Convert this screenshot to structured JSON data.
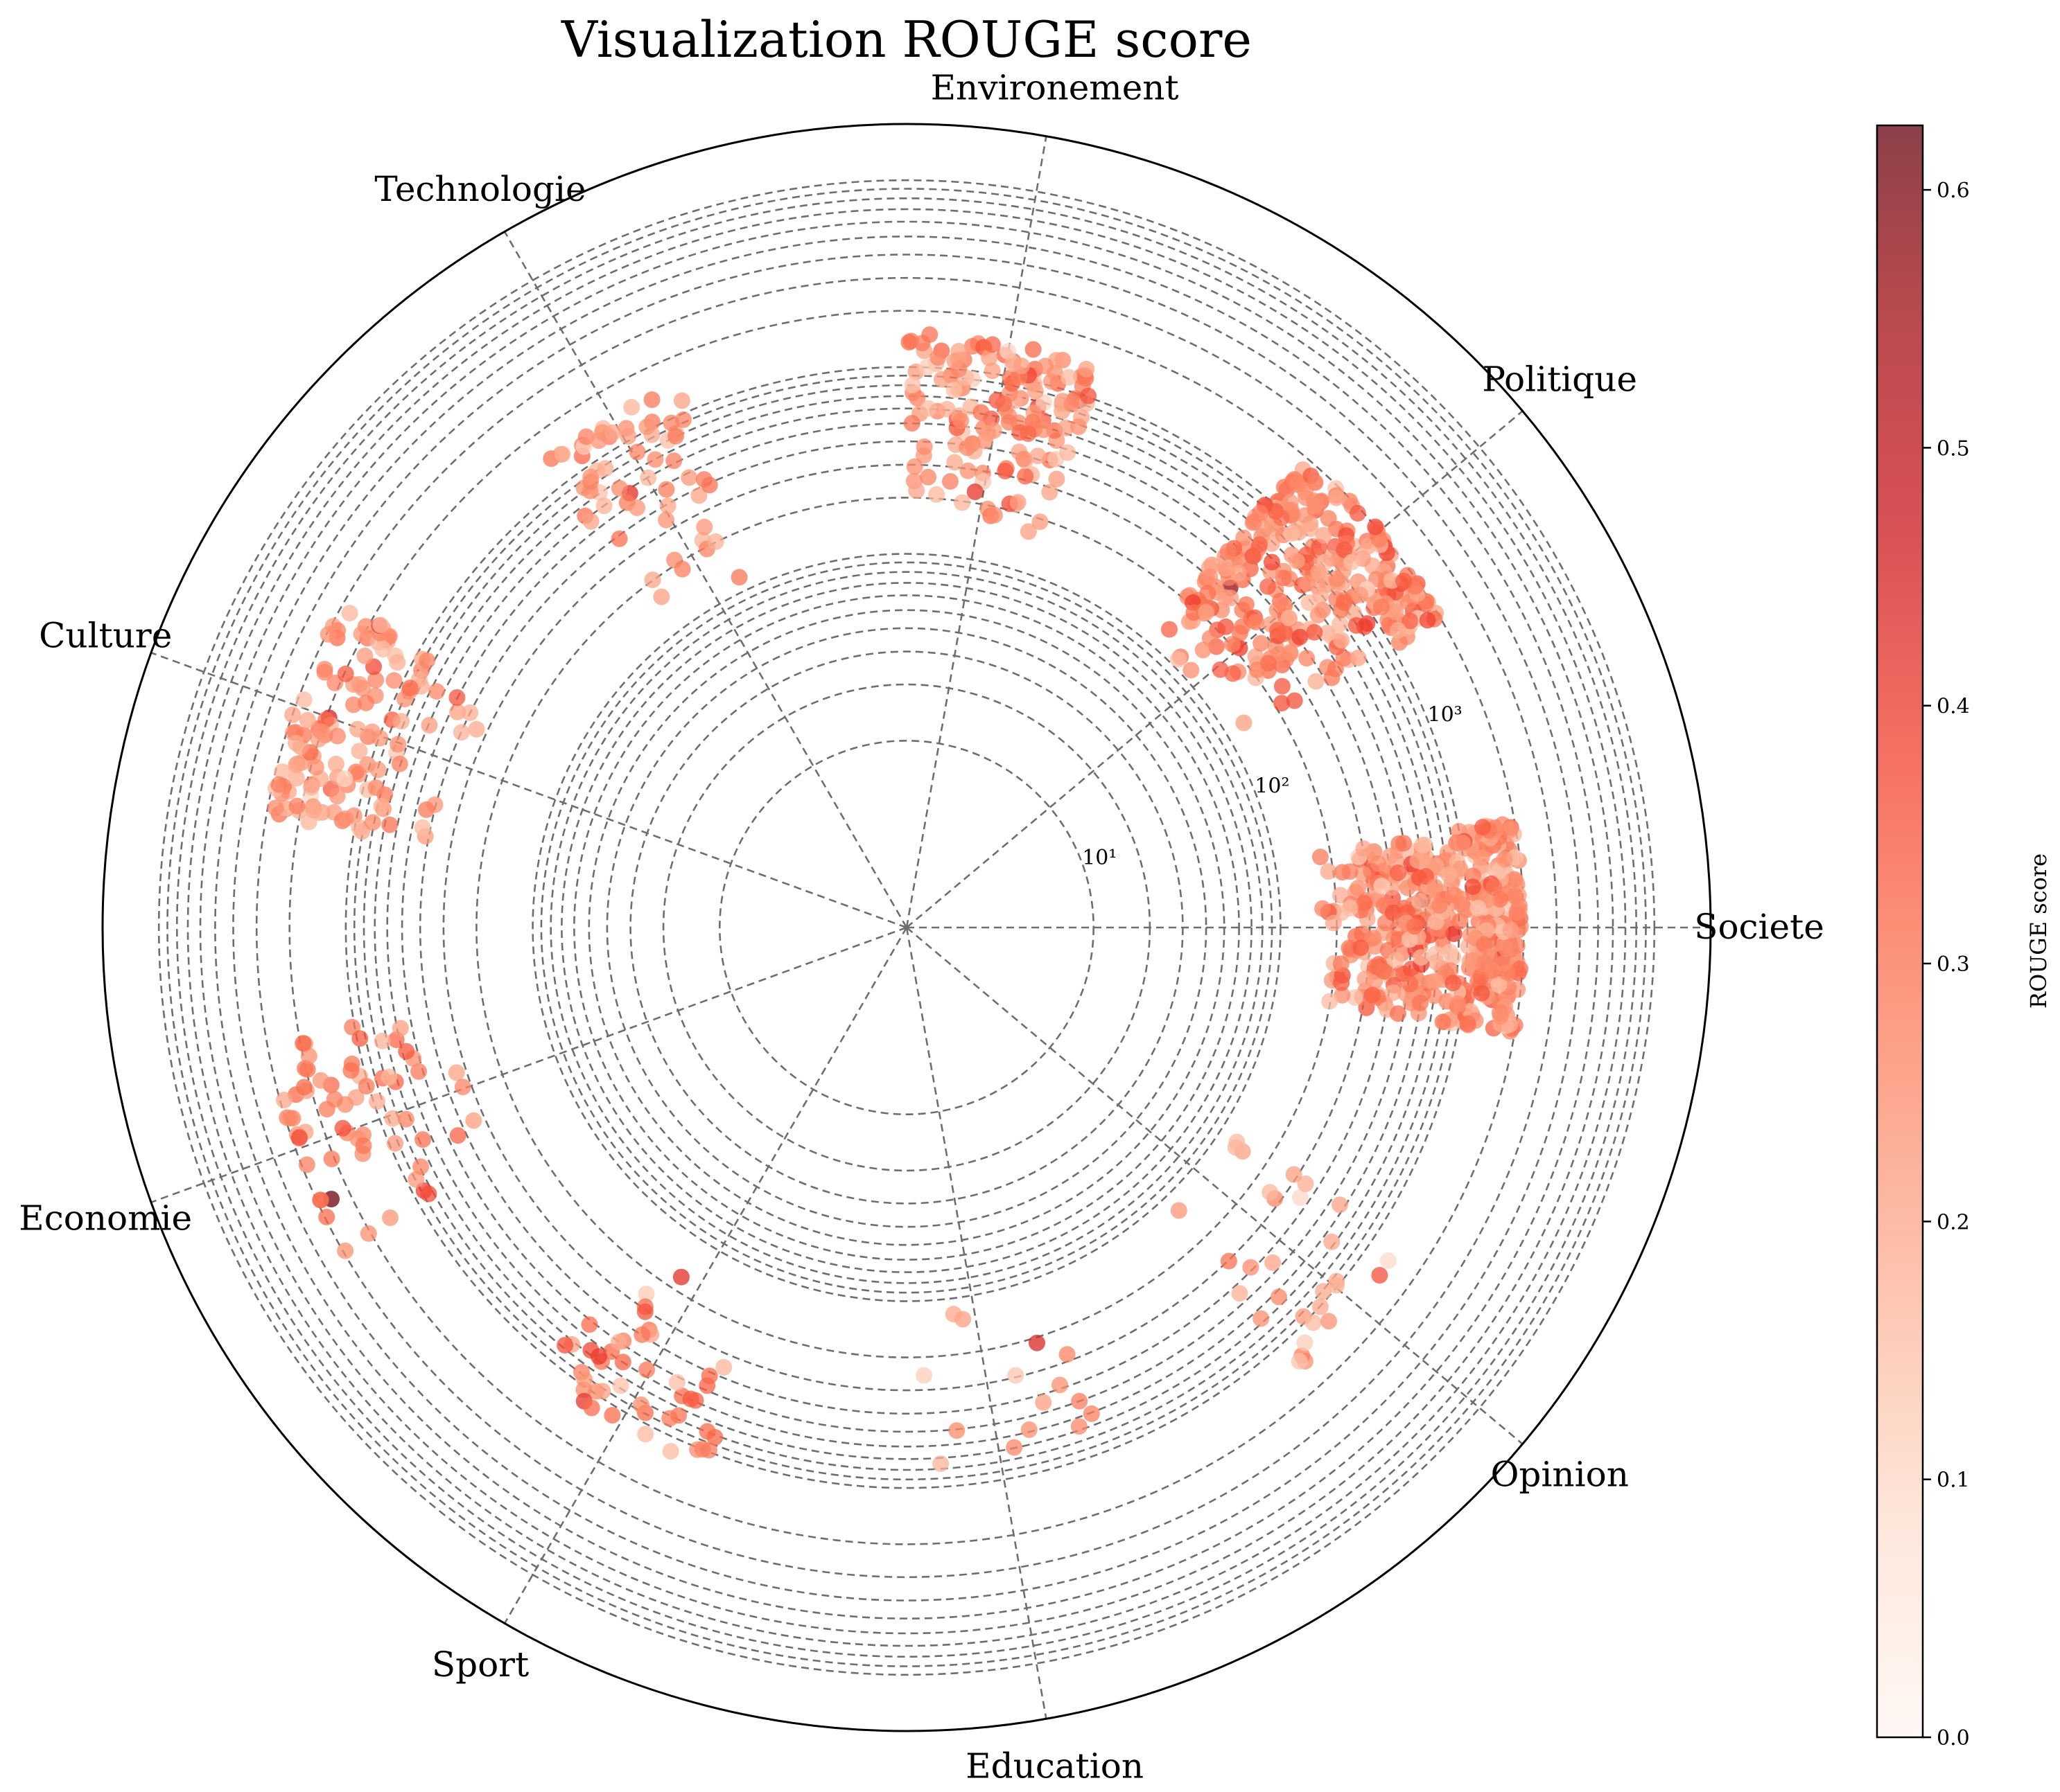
{
  "chart_data": {
    "type": "scatter",
    "projection": "polar",
    "title": "Visualization ROUGE score",
    "radial_scale": "log",
    "radial_tick_labels": [
      "10¹",
      "10²",
      "10³"
    ],
    "grid": true,
    "categories": [
      "Societe",
      "Politique",
      "Environement",
      "Technologie",
      "Culture",
      "Economie",
      "Sport",
      "Education",
      "Opinion"
    ],
    "category_angles_deg": [
      0,
      40,
      80,
      120,
      160,
      200,
      240,
      280,
      320
    ],
    "colormap": "Reds",
    "point_alpha": 0.75,
    "colorbar": {
      "label": "ROUGE score",
      "range": [
        0.0,
        0.625
      ],
      "ticks": [
        "0.0",
        "0.1",
        "0.2",
        "0.3",
        "0.4",
        "0.5",
        "0.6"
      ],
      "colors": [
        "#fff5f0",
        "#fee0d2",
        "#fcbba1",
        "#fc9272",
        "#fb6a4a",
        "#ef3b2c",
        "#cb181d",
        "#a50f15",
        "#67000d"
      ]
    },
    "clusters": [
      {
        "category": "Societe",
        "n_points": 430,
        "angle_deg": [
          -10,
          10
        ],
        "radius_range": [
          150,
          2000
        ],
        "score_mean": 0.25,
        "score_max": 0.58
      },
      {
        "category": "Politique",
        "n_points": 300,
        "angle_deg": [
          30,
          50
        ],
        "radius_range": [
          100,
          2000
        ],
        "score_mean": 0.26,
        "score_max": 0.57
      },
      {
        "category": "Environement",
        "n_points": 150,
        "angle_deg": [
          71,
          90
        ],
        "radius_range": [
          150,
          1500
        ],
        "score_mean": 0.25,
        "score_max": 0.55
      },
      {
        "category": "Technologie",
        "n_points": 60,
        "angle_deg": [
          113,
          128
        ],
        "radius_range": [
          100,
          1500
        ],
        "score_mean": 0.24,
        "score_max": 0.42
      },
      {
        "category": "Culture",
        "n_points": 130,
        "angle_deg": [
          150,
          170
        ],
        "radius_range": [
          300,
          3000
        ],
        "score_mean": 0.24,
        "score_max": 0.45
      },
      {
        "category": "Economie",
        "n_points": 65,
        "angle_deg": [
          190,
          210
        ],
        "radius_range": [
          300,
          3000
        ],
        "score_mean": 0.27,
        "score_max": 0.62
      },
      {
        "category": "Sport",
        "n_points": 45,
        "angle_deg": [
          230,
          250
        ],
        "radius_range": [
          150,
          1200
        ],
        "score_mean": 0.26,
        "score_max": 0.42
      },
      {
        "category": "Education",
        "n_points": 15,
        "angle_deg": [
          272,
          292
        ],
        "radius_range": [
          100,
          800
        ],
        "score_mean": 0.25,
        "score_max": 0.44
      },
      {
        "category": "Opinion",
        "n_points": 30,
        "angle_deg": [
          312,
          328
        ],
        "radius_range": [
          100,
          1500
        ],
        "score_mean": 0.22,
        "score_max": 0.3
      }
    ]
  }
}
